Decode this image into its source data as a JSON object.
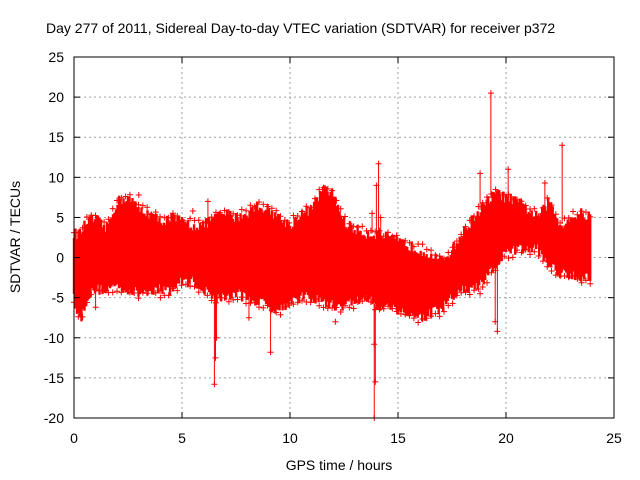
{
  "chart_data": {
    "type": "scatter",
    "title": "Day 277 of 2011, Sidereal Day-to-day VTEC variation (SDTVAR) for receiver p372",
    "xlabel": "GPS time / hours",
    "ylabel": "SDTVAR / TECUs",
    "xlim": [
      0,
      25
    ],
    "ylim": [
      -20,
      25
    ],
    "x_ticks": [
      0,
      5,
      10,
      15,
      20,
      25
    ],
    "y_ticks": [
      -20,
      -15,
      -10,
      -5,
      0,
      5,
      10,
      15,
      20,
      25
    ],
    "x_tick_labels": [
      "0",
      "5",
      "10",
      "15",
      "20",
      "25"
    ],
    "y_tick_labels": [
      "-20",
      "-15",
      "-10",
      "-5",
      "0",
      "5",
      "10",
      "15",
      "20",
      "25"
    ],
    "grid": true,
    "marker": "+",
    "color": "#ff0000",
    "series": [
      {
        "name": "SDTVAR",
        "band_profile": {
          "x": [
            0.0,
            0.3,
            0.6,
            1.0,
            1.5,
            2.0,
            2.5,
            3.0,
            3.5,
            4.0,
            4.5,
            5.0,
            5.5,
            6.0,
            6.5,
            7.0,
            7.5,
            8.0,
            8.5,
            9.0,
            9.5,
            10.0,
            10.5,
            11.0,
            11.5,
            12.0,
            12.5,
            13.0,
            13.5,
            14.0,
            14.5,
            15.0,
            15.5,
            16.0,
            16.5,
            17.0,
            17.5,
            18.0,
            18.5,
            19.0,
            19.5,
            20.0,
            20.5,
            21.0,
            21.5,
            22.0,
            22.5,
            23.0,
            23.5,
            23.9
          ],
          "upper": [
            3.0,
            3.0,
            4.5,
            4.8,
            3.5,
            7.0,
            7.5,
            6.0,
            5.5,
            4.5,
            5.0,
            4.5,
            4.0,
            4.0,
            5.0,
            5.5,
            5.0,
            5.5,
            6.5,
            6.0,
            5.0,
            4.0,
            5.5,
            6.0,
            8.5,
            8.0,
            4.5,
            3.5,
            3.0,
            3.0,
            2.5,
            2.0,
            1.5,
            1.0,
            0.5,
            -0.5,
            1.0,
            3.0,
            5.0,
            6.5,
            8.0,
            7.5,
            7.0,
            6.0,
            5.0,
            7.0,
            4.0,
            5.0,
            5.5,
            5.0
          ],
          "lower": [
            -5.0,
            -8.0,
            -5.0,
            -4.0,
            -4.0,
            -3.5,
            -4.0,
            -4.5,
            -4.0,
            -4.0,
            -4.0,
            -3.0,
            -3.0,
            -4.0,
            -5.0,
            -5.0,
            -4.5,
            -5.0,
            -5.5,
            -6.0,
            -6.5,
            -5.5,
            -5.0,
            -5.0,
            -5.5,
            -6.0,
            -6.0,
            -5.5,
            -5.0,
            -6.0,
            -6.0,
            -6.5,
            -7.0,
            -7.5,
            -7.0,
            -6.5,
            -5.0,
            -4.0,
            -4.0,
            -3.0,
            -1.0,
            0.5,
            1.0,
            1.0,
            1.0,
            -1.0,
            -2.0,
            -2.0,
            -2.5,
            -2.5
          ]
        },
        "outliers": [
          {
            "x": 19.3,
            "y": 20.5
          },
          {
            "x": 22.6,
            "y": 14.0
          },
          {
            "x": 14.1,
            "y": 11.7
          },
          {
            "x": 20.1,
            "y": 11.0
          },
          {
            "x": 18.8,
            "y": 10.5
          },
          {
            "x": 21.8,
            "y": 9.3
          },
          {
            "x": 14.0,
            "y": 9.0
          },
          {
            "x": 13.9,
            "y": -20.0
          },
          {
            "x": 13.95,
            "y": -15.5
          },
          {
            "x": 13.9,
            "y": -10.8
          },
          {
            "x": 6.5,
            "y": -15.8
          },
          {
            "x": 6.55,
            "y": -12.5
          },
          {
            "x": 6.6,
            "y": -10.0
          },
          {
            "x": 8.1,
            "y": -7.5
          },
          {
            "x": 9.1,
            "y": -11.8
          },
          {
            "x": 12.1,
            "y": -8.0
          },
          {
            "x": 19.6,
            "y": -9.2
          },
          {
            "x": 18.8,
            "y": -4.5
          },
          {
            "x": 6.2,
            "y": 7.0
          },
          {
            "x": 5.5,
            "y": 5.8
          },
          {
            "x": 3.0,
            "y": 7.8
          },
          {
            "x": 13.8,
            "y": 5.5
          },
          {
            "x": 14.2,
            "y": 5.0
          },
          {
            "x": 1.0,
            "y": -6.2
          },
          {
            "x": 4.0,
            "y": -5.0
          },
          {
            "x": 19.5,
            "y": -8.0
          }
        ]
      }
    ]
  }
}
